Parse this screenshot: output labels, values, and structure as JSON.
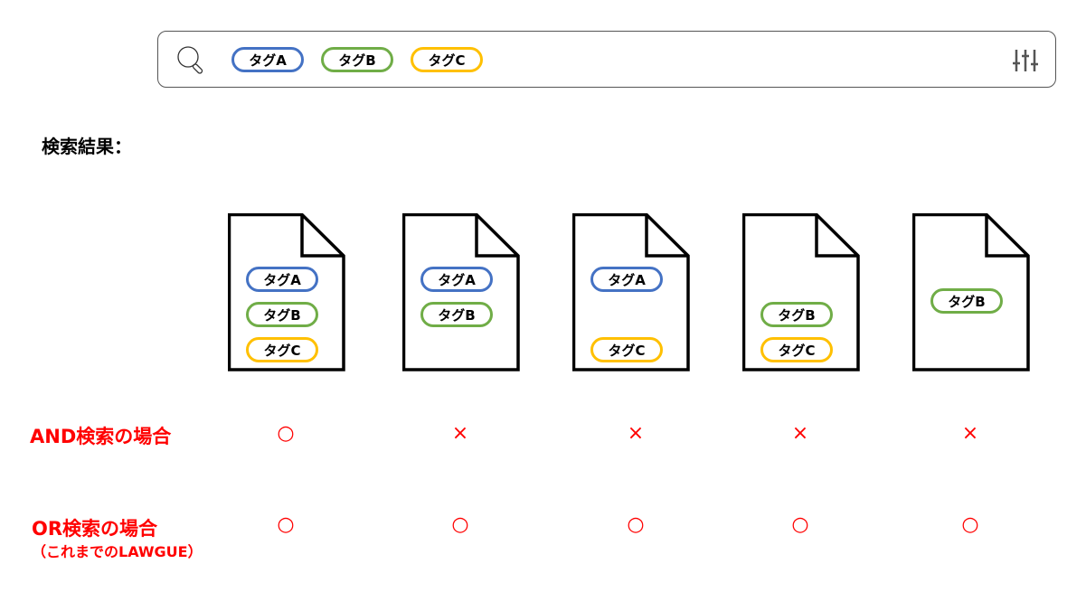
{
  "colors": {
    "tagA": "#4472C4",
    "tagB": "#70AD47",
    "tagC": "#FFC000",
    "accent": "#FF0000"
  },
  "search": {
    "icon": "search-icon",
    "filter_icon": "sliders-icon",
    "tags": [
      {
        "label": "タグA",
        "color": "#4472C4"
      },
      {
        "label": "タグB",
        "color": "#70AD47"
      },
      {
        "label": "タグC",
        "color": "#FFC000"
      }
    ]
  },
  "results_label": "検索結果：",
  "documents": [
    {
      "tags": [
        "タグA",
        "タグB",
        "タグC"
      ]
    },
    {
      "tags": [
        "タグA",
        "タグB"
      ]
    },
    {
      "tags": [
        "タグA",
        "タグC"
      ]
    },
    {
      "tags": [
        "タグB",
        "タグC"
      ]
    },
    {
      "tags": [
        "タグB"
      ]
    }
  ],
  "rows": [
    {
      "label": "AND検索の場合",
      "sublabel": "",
      "marks": [
        "○",
        "×",
        "×",
        "×",
        "×"
      ]
    },
    {
      "label": "OR検索の場合",
      "sublabel": "（これまでのLAWGUE）",
      "marks": [
        "○",
        "○",
        "○",
        "○",
        "○"
      ]
    }
  ]
}
